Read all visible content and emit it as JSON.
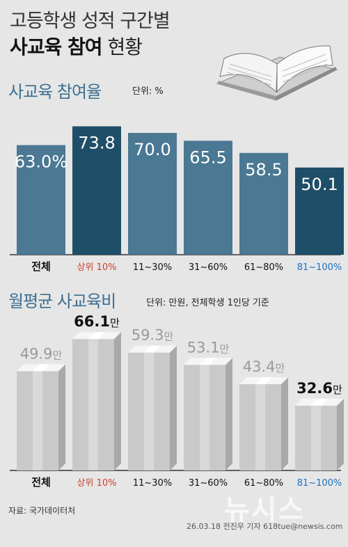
{
  "header": {
    "line1": "고등학생 성적 구간별",
    "line2_bold": "사교육 참여",
    "line2_light": "현황"
  },
  "colors": {
    "bar_normal": "#4b7893",
    "bar_highlight": "#1f4e68",
    "label_red": "#d0402a",
    "label_blue": "#1c72c2",
    "box_front": "#c9c9c9",
    "box_side": "#a9a9a9",
    "box_top": "#f5f5f5",
    "value_gray": "#9a9a9a"
  },
  "chart_data": [
    {
      "type": "bar",
      "title": "사교육 참여율",
      "unit": "단위: %",
      "categories": [
        "전체",
        "상위 10%",
        "11~30%",
        "31~60%",
        "61~80%",
        "81~100%"
      ],
      "values": [
        63.0,
        73.8,
        70.0,
        65.5,
        58.5,
        50.1
      ],
      "value_labels": [
        "63.0%",
        "73.8",
        "70.0",
        "65.5",
        "58.5",
        "50.1"
      ],
      "highlight": [
        false,
        true,
        false,
        false,
        false,
        true
      ],
      "ylim": [
        0,
        80
      ]
    },
    {
      "type": "bar",
      "title": "월평균 사교육비",
      "unit": "단위: 만원, 전체학생 1인당 기준",
      "categories": [
        "전체",
        "상위 10%",
        "11~30%",
        "31~60%",
        "61~80%",
        "81~100%"
      ],
      "values": [
        49.9,
        66.1,
        59.3,
        53.1,
        43.4,
        32.6
      ],
      "value_suffix": "만",
      "highlight": [
        false,
        true,
        false,
        false,
        false,
        true
      ],
      "ylim": [
        0,
        70
      ]
    }
  ],
  "label_styles": [
    "bold",
    "red",
    "plain",
    "plain",
    "plain",
    "blue"
  ],
  "footer": {
    "source": "자료: 국가데이터처",
    "credit": "26.03.18 전진우 기자 618tue@newsis.com",
    "watermark": "뉴시스"
  }
}
